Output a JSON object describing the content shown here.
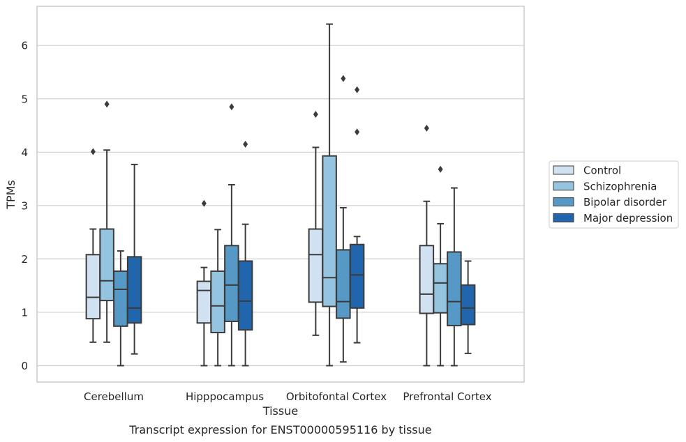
{
  "caption": "Transcript expression for ENST00000595116 by tissue",
  "chart_data": {
    "type": "box",
    "xlabel": "Tissue",
    "ylabel": "TPMs",
    "ylim": [
      -0.3,
      6.75
    ],
    "yticks": [
      0,
      1,
      2,
      3,
      4,
      5,
      6
    ],
    "grid": "horizontal",
    "legend_position": "right",
    "categories": [
      "Cerebellum",
      "Hipppocampus",
      "Orbitofontal Cortex",
      "Prefrontal Cortex"
    ],
    "series": [
      {
        "name": "Control",
        "color": "#d0e1f2",
        "boxes": [
          {
            "whislo": 0.44,
            "q1": 0.88,
            "med": 1.28,
            "q3": 2.08,
            "whishi": 2.56,
            "fliers": [
              4.01
            ]
          },
          {
            "whislo": 0.0,
            "q1": 0.8,
            "med": 1.41,
            "q3": 1.58,
            "whishi": 1.84,
            "fliers": [
              3.04
            ]
          },
          {
            "whislo": 0.57,
            "q1": 1.19,
            "med": 2.08,
            "q3": 2.56,
            "whishi": 4.09,
            "fliers": [
              4.71
            ]
          },
          {
            "whislo": 0.0,
            "q1": 0.98,
            "med": 1.34,
            "q3": 2.25,
            "whishi": 3.08,
            "fliers": [
              4.45
            ]
          }
        ]
      },
      {
        "name": "Schizophrenia",
        "color": "#94c4df",
        "boxes": [
          {
            "whislo": 0.44,
            "q1": 1.22,
            "med": 1.59,
            "q3": 2.56,
            "whishi": 4.04,
            "fliers": [
              4.9
            ]
          },
          {
            "whislo": 0.0,
            "q1": 0.62,
            "med": 1.12,
            "q3": 1.77,
            "whishi": 2.55,
            "fliers": []
          },
          {
            "whislo": 0.0,
            "q1": 1.11,
            "med": 1.65,
            "q3": 3.93,
            "whishi": 6.4,
            "fliers": []
          },
          {
            "whislo": 0.0,
            "q1": 0.99,
            "med": 1.55,
            "q3": 1.91,
            "whishi": 2.66,
            "fliers": [
              3.68
            ]
          }
        ]
      },
      {
        "name": "Bipolar disorder",
        "color": "#5799c6",
        "boxes": [
          {
            "whislo": 0.0,
            "q1": 0.74,
            "med": 1.43,
            "q3": 1.77,
            "whishi": 2.15,
            "fliers": []
          },
          {
            "whislo": 0.0,
            "q1": 0.83,
            "med": 1.51,
            "q3": 2.25,
            "whishi": 3.39,
            "fliers": [
              4.85
            ]
          },
          {
            "whislo": 0.07,
            "q1": 0.89,
            "med": 1.2,
            "q3": 2.17,
            "whishi": 2.96,
            "fliers": [
              5.38
            ]
          },
          {
            "whislo": 0.0,
            "q1": 0.75,
            "med": 1.2,
            "q3": 2.13,
            "whishi": 3.33,
            "fliers": []
          }
        ]
      },
      {
        "name": "Major depression",
        "color": "#2166ac",
        "boxes": [
          {
            "whislo": 0.22,
            "q1": 0.8,
            "med": 1.08,
            "q3": 2.04,
            "whishi": 3.77,
            "fliers": []
          },
          {
            "whislo": 0.0,
            "q1": 0.67,
            "med": 1.21,
            "q3": 1.96,
            "whishi": 2.65,
            "fliers": [
              4.15
            ]
          },
          {
            "whislo": 0.43,
            "q1": 1.08,
            "med": 1.7,
            "q3": 2.27,
            "whishi": 2.42,
            "fliers": [
              4.38,
              5.17
            ]
          },
          {
            "whislo": 0.23,
            "q1": 0.77,
            "med": 1.08,
            "q3": 1.51,
            "whishi": 1.96,
            "fliers": []
          }
        ]
      }
    ]
  }
}
